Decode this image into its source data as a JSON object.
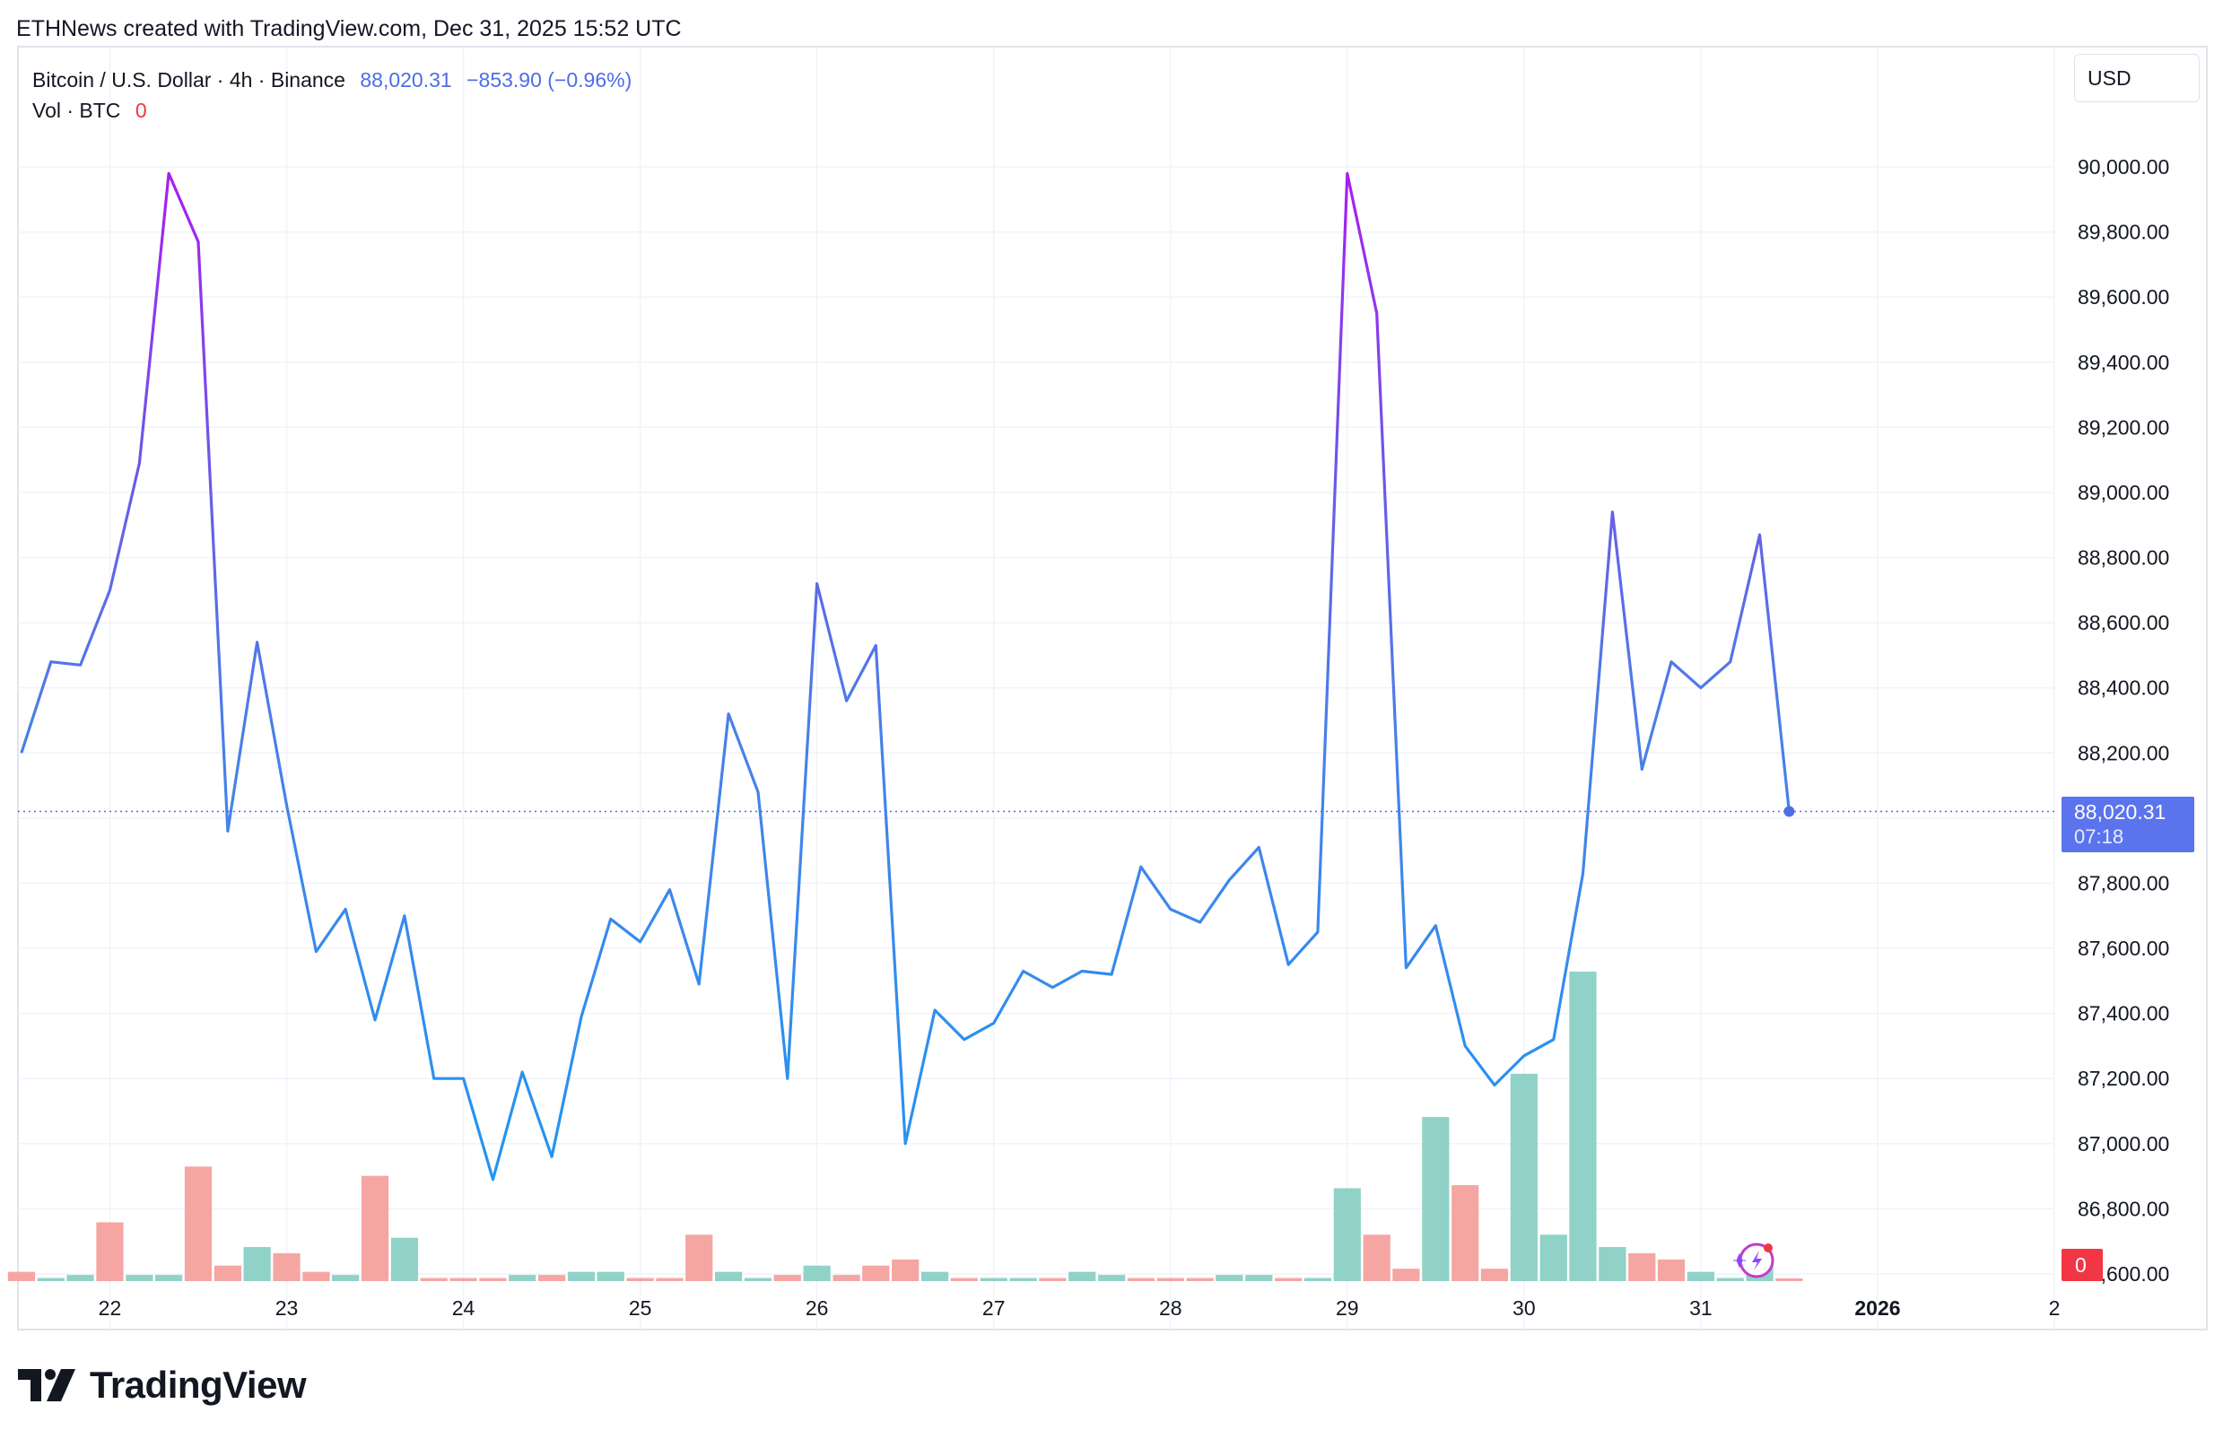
{
  "header": {
    "attribution": "ETHNews created with TradingView.com, Dec 31, 2025 15:52 UTC"
  },
  "legend": {
    "symbol": "Bitcoin / U.S. Dollar · 4h · Binance",
    "last": "88,020.31",
    "change": "−853.90 (−0.96%)",
    "vol_label": "Vol · BTC",
    "vol_value": "0"
  },
  "currency_selector": "USD",
  "price_tag": {
    "price": "88,020.31",
    "countdown": "07:18"
  },
  "volume_tag": "0",
  "logo": {
    "text": "TradingView"
  },
  "colors": {
    "line_low": "#2196f3",
    "line_high": "#aa1cf2",
    "up_volume": "#90d2c8",
    "down_volume": "#f5a6a3",
    "price_tag": "#5b74ee",
    "volume_tag": "#f23645",
    "legend_value": "#4c6ee6"
  },
  "chart_data": {
    "type": "line",
    "timeframe": "4h",
    "x_tick_labels": [
      "22",
      "23",
      "24",
      "25",
      "26",
      "27",
      "28",
      "29",
      "30",
      "31",
      "2026",
      "2"
    ],
    "y_tick_labels": [
      "86,600.00",
      "86,800.00",
      "87,000.00",
      "87,200.00",
      "87,400.00",
      "87,600.00",
      "87,800.00",
      "88,000.00",
      "88,200.00",
      "88,400.00",
      "88,600.00",
      "88,800.00",
      "89,000.00",
      "89,200.00",
      "89,400.00",
      "89,600.00",
      "89,800.00",
      "90,000.00"
    ],
    "ylim": [
      86600,
      90000
    ],
    "x_range_days": [
      21.48,
      33.0
    ],
    "series": [
      {
        "x": [
          21.5,
          21.667,
          21.833,
          22.0,
          22.167,
          22.333,
          22.5,
          22.667,
          22.833,
          23.0,
          23.167,
          23.333,
          23.5,
          23.667,
          23.833,
          24.0,
          24.167,
          24.333,
          24.5,
          24.667,
          24.833,
          25.0,
          25.167,
          25.333,
          25.5,
          25.667,
          25.833,
          26.0,
          26.167,
          26.333,
          26.5,
          26.667,
          26.833,
          27.0,
          27.167,
          27.333,
          27.5,
          27.667,
          27.833,
          28.0,
          28.167,
          28.333,
          28.5,
          28.667,
          28.833,
          29.0,
          29.167,
          29.333,
          29.5,
          29.667,
          29.833,
          30.0,
          30.167,
          30.333,
          30.5,
          30.667,
          30.833,
          31.0,
          31.167,
          31.333,
          31.5
        ],
        "y": [
          88200,
          88480,
          88470,
          88700,
          89090,
          89980,
          89770,
          87960,
          88540,
          88040,
          87590,
          87720,
          87380,
          87700,
          87200,
          87200,
          86890,
          87220,
          86960,
          87390,
          87690,
          87620,
          87780,
          87490,
          88320,
          88080,
          87200,
          88720,
          88360,
          88530,
          87000,
          87410,
          87320,
          87370,
          87530,
          87480,
          87530,
          87520,
          87850,
          87720,
          87680,
          87810,
          87910,
          87550,
          87650,
          89980,
          89550,
          87540,
          87670,
          87300,
          87180,
          87270,
          87320,
          87830,
          88940,
          88150,
          88480,
          88400,
          88480,
          88870,
          88020
        ]
      }
    ],
    "volume": {
      "x": [
        21.5,
        21.667,
        21.833,
        22.0,
        22.167,
        22.333,
        22.5,
        22.667,
        22.833,
        23.0,
        23.167,
        23.333,
        23.5,
        23.667,
        23.833,
        24.0,
        24.167,
        24.333,
        24.5,
        24.667,
        24.833,
        25.0,
        25.167,
        25.333,
        25.5,
        25.667,
        25.833,
        26.0,
        26.167,
        26.333,
        26.5,
        26.667,
        26.833,
        27.0,
        27.167,
        27.333,
        27.5,
        27.667,
        27.833,
        28.0,
        28.167,
        28.333,
        28.5,
        28.667,
        28.833,
        29.0,
        29.167,
        29.333,
        29.5,
        29.667,
        29.833,
        30.0,
        30.167,
        30.333,
        30.5,
        30.667,
        30.833,
        31.0,
        31.167,
        31.333,
        31.5
      ],
      "values": [
        0.03,
        0.01,
        0.02,
        0.19,
        0.02,
        0.02,
        0.37,
        0.05,
        0.11,
        0.09,
        0.03,
        0.02,
        0.34,
        0.14,
        0.01,
        0.01,
        0.01,
        0.02,
        0.02,
        0.03,
        0.03,
        0.01,
        0.01,
        0.15,
        0.03,
        0.01,
        0.02,
        0.05,
        0.02,
        0.05,
        0.07,
        0.03,
        0.01,
        0.01,
        0.01,
        0.01,
        0.03,
        0.02,
        0.01,
        0.01,
        0.01,
        0.02,
        0.02,
        0.01,
        0.01,
        0.3,
        0.15,
        0.04,
        0.53,
        0.31,
        0.04,
        0.67,
        0.15,
        1.0,
        0.11,
        0.09,
        0.07,
        0.03,
        0.01,
        0.05,
        0.0
      ],
      "up": [
        false,
        true,
        true,
        false,
        true,
        true,
        false,
        false,
        true,
        false,
        false,
        true,
        false,
        true,
        false,
        false,
        false,
        true,
        false,
        true,
        true,
        false,
        false,
        false,
        true,
        true,
        false,
        true,
        false,
        false,
        false,
        true,
        false,
        true,
        true,
        false,
        true,
        true,
        false,
        false,
        false,
        true,
        true,
        false,
        true,
        true,
        false,
        false,
        true,
        false,
        false,
        true,
        true,
        true,
        true,
        false,
        false,
        true,
        true,
        true,
        false
      ]
    },
    "last_value": 88020.31,
    "grid": true,
    "price_scale": "right"
  }
}
